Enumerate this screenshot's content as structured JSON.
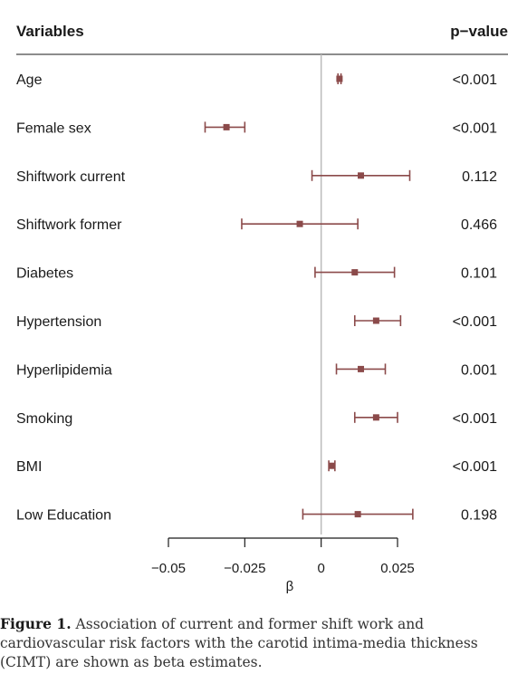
{
  "chart_data": {
    "type": "forest",
    "header": {
      "variables": "Variables",
      "pvalue": "p−value"
    },
    "xlabel": "β",
    "xlim": [
      -0.05,
      0.025
    ],
    "ticks": [
      -0.05,
      -0.025,
      0,
      0.025
    ],
    "tick_labels": [
      "−0.05",
      "−0.025",
      "0",
      "0.025"
    ],
    "marker_color": "#8b4a4a",
    "zero_line_color": "#bbbbbb",
    "rows": [
      {
        "label": "Age",
        "estimate": 0.006,
        "lower": 0.0055,
        "upper": 0.0065,
        "pvalue": "<0.001"
      },
      {
        "label": "Female sex",
        "estimate": -0.031,
        "lower": -0.038,
        "upper": -0.025,
        "pvalue": "<0.001"
      },
      {
        "label": "Shiftwork current",
        "estimate": 0.013,
        "lower": -0.003,
        "upper": 0.029,
        "pvalue": "0.112"
      },
      {
        "label": "Shiftwork former",
        "estimate": -0.007,
        "lower": -0.026,
        "upper": 0.012,
        "pvalue": "0.466"
      },
      {
        "label": "Diabetes",
        "estimate": 0.011,
        "lower": -0.002,
        "upper": 0.024,
        "pvalue": "0.101"
      },
      {
        "label": "Hypertension",
        "estimate": 0.018,
        "lower": 0.011,
        "upper": 0.026,
        "pvalue": "<0.001"
      },
      {
        "label": "Hyperlipidemia",
        "estimate": 0.013,
        "lower": 0.005,
        "upper": 0.021,
        "pvalue": "0.001"
      },
      {
        "label": "Smoking",
        "estimate": 0.018,
        "lower": 0.011,
        "upper": 0.025,
        "pvalue": "<0.001"
      },
      {
        "label": "BMI",
        "estimate": 0.0035,
        "lower": 0.0025,
        "upper": 0.0045,
        "pvalue": "<0.001"
      },
      {
        "label": "Low Education",
        "estimate": 0.012,
        "lower": -0.006,
        "upper": 0.03,
        "pvalue": "0.198"
      }
    ]
  },
  "caption": {
    "label": "Figure 1.",
    "text": "Association of current and former shift work and cardiovascular risk factors with the carotid intima-media thickness (CIMT) are shown as beta estimates."
  }
}
